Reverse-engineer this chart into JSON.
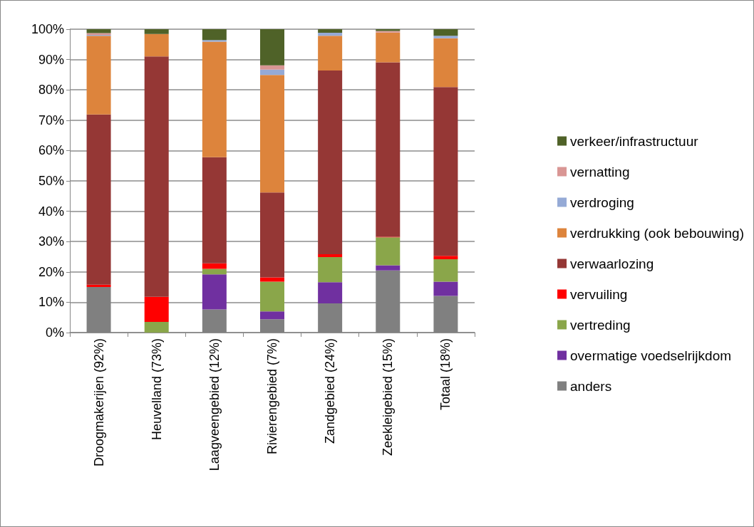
{
  "chart_data": {
    "type": "bar",
    "stacked": true,
    "legend": "right",
    "grid": "y",
    "categories": [
      "Droogmakerijen (92%)",
      "Heuvelland (73%)",
      "Laagveengebied (12%)",
      "Rivierengebied (7%)",
      "Zandgebied (24%)",
      "Zeekleigebied (15%)",
      "Totaal (18%)"
    ],
    "ylim": [
      0,
      100
    ],
    "yticks": [
      {
        "value": 0,
        "label": "0%"
      },
      {
        "value": 10,
        "label": "10%"
      },
      {
        "value": 20,
        "label": "20%"
      },
      {
        "value": 30,
        "label": "30%"
      },
      {
        "value": 40,
        "label": "40%"
      },
      {
        "value": 50,
        "label": "50%"
      },
      {
        "value": 60,
        "label": "60%"
      },
      {
        "value": 70,
        "label": "70%"
      },
      {
        "value": 80,
        "label": "80%"
      },
      {
        "value": 90,
        "label": "90%"
      },
      {
        "value": 100,
        "label": "100%"
      }
    ],
    "series": [
      {
        "name": "anders",
        "color": "#808080",
        "values": [
          15,
          0,
          7.6,
          4.4,
          9.6,
          20.5,
          12.1
        ]
      },
      {
        "name": "overmatige voedselrijkdom",
        "color": "#7030a0",
        "values": [
          0,
          0,
          11.6,
          2.6,
          7,
          1.7,
          4.7
        ]
      },
      {
        "name": "vertreding",
        "color": "#8aa64a",
        "values": [
          0,
          3.5,
          1.8,
          9.8,
          8.3,
          9.2,
          7.4
        ]
      },
      {
        "name": "vervuiling",
        "color": "#ff0000",
        "values": [
          0.8,
          8.3,
          1.8,
          1.4,
          0.9,
          0.2,
          1.1
        ]
      },
      {
        "name": "verwaarlozing",
        "color": "#953735",
        "values": [
          56.1,
          79.2,
          35,
          28,
          60.6,
          57.5,
          55.6
        ]
      },
      {
        "name": "verdrukking (ook bebouwing)",
        "color": "#dd843c",
        "values": [
          25.9,
          7.4,
          38.1,
          38.7,
          11.4,
          9.8,
          16.1
        ]
      },
      {
        "name": "verdroging",
        "color": "#95aad6",
        "values": [
          0.3,
          0,
          0.5,
          1.8,
          1,
          0,
          0.8
        ]
      },
      {
        "name": "vernatting",
        "color": "#d99694",
        "values": [
          0.6,
          0,
          0,
          1.4,
          0,
          0.5,
          null
        ]
      },
      {
        "name": "verkeer/infrastructuur",
        "color": "#4f6228",
        "values": [
          1.3,
          1.6,
          3.6,
          11.9,
          1.2,
          0.6,
          2.2
        ]
      }
    ]
  }
}
